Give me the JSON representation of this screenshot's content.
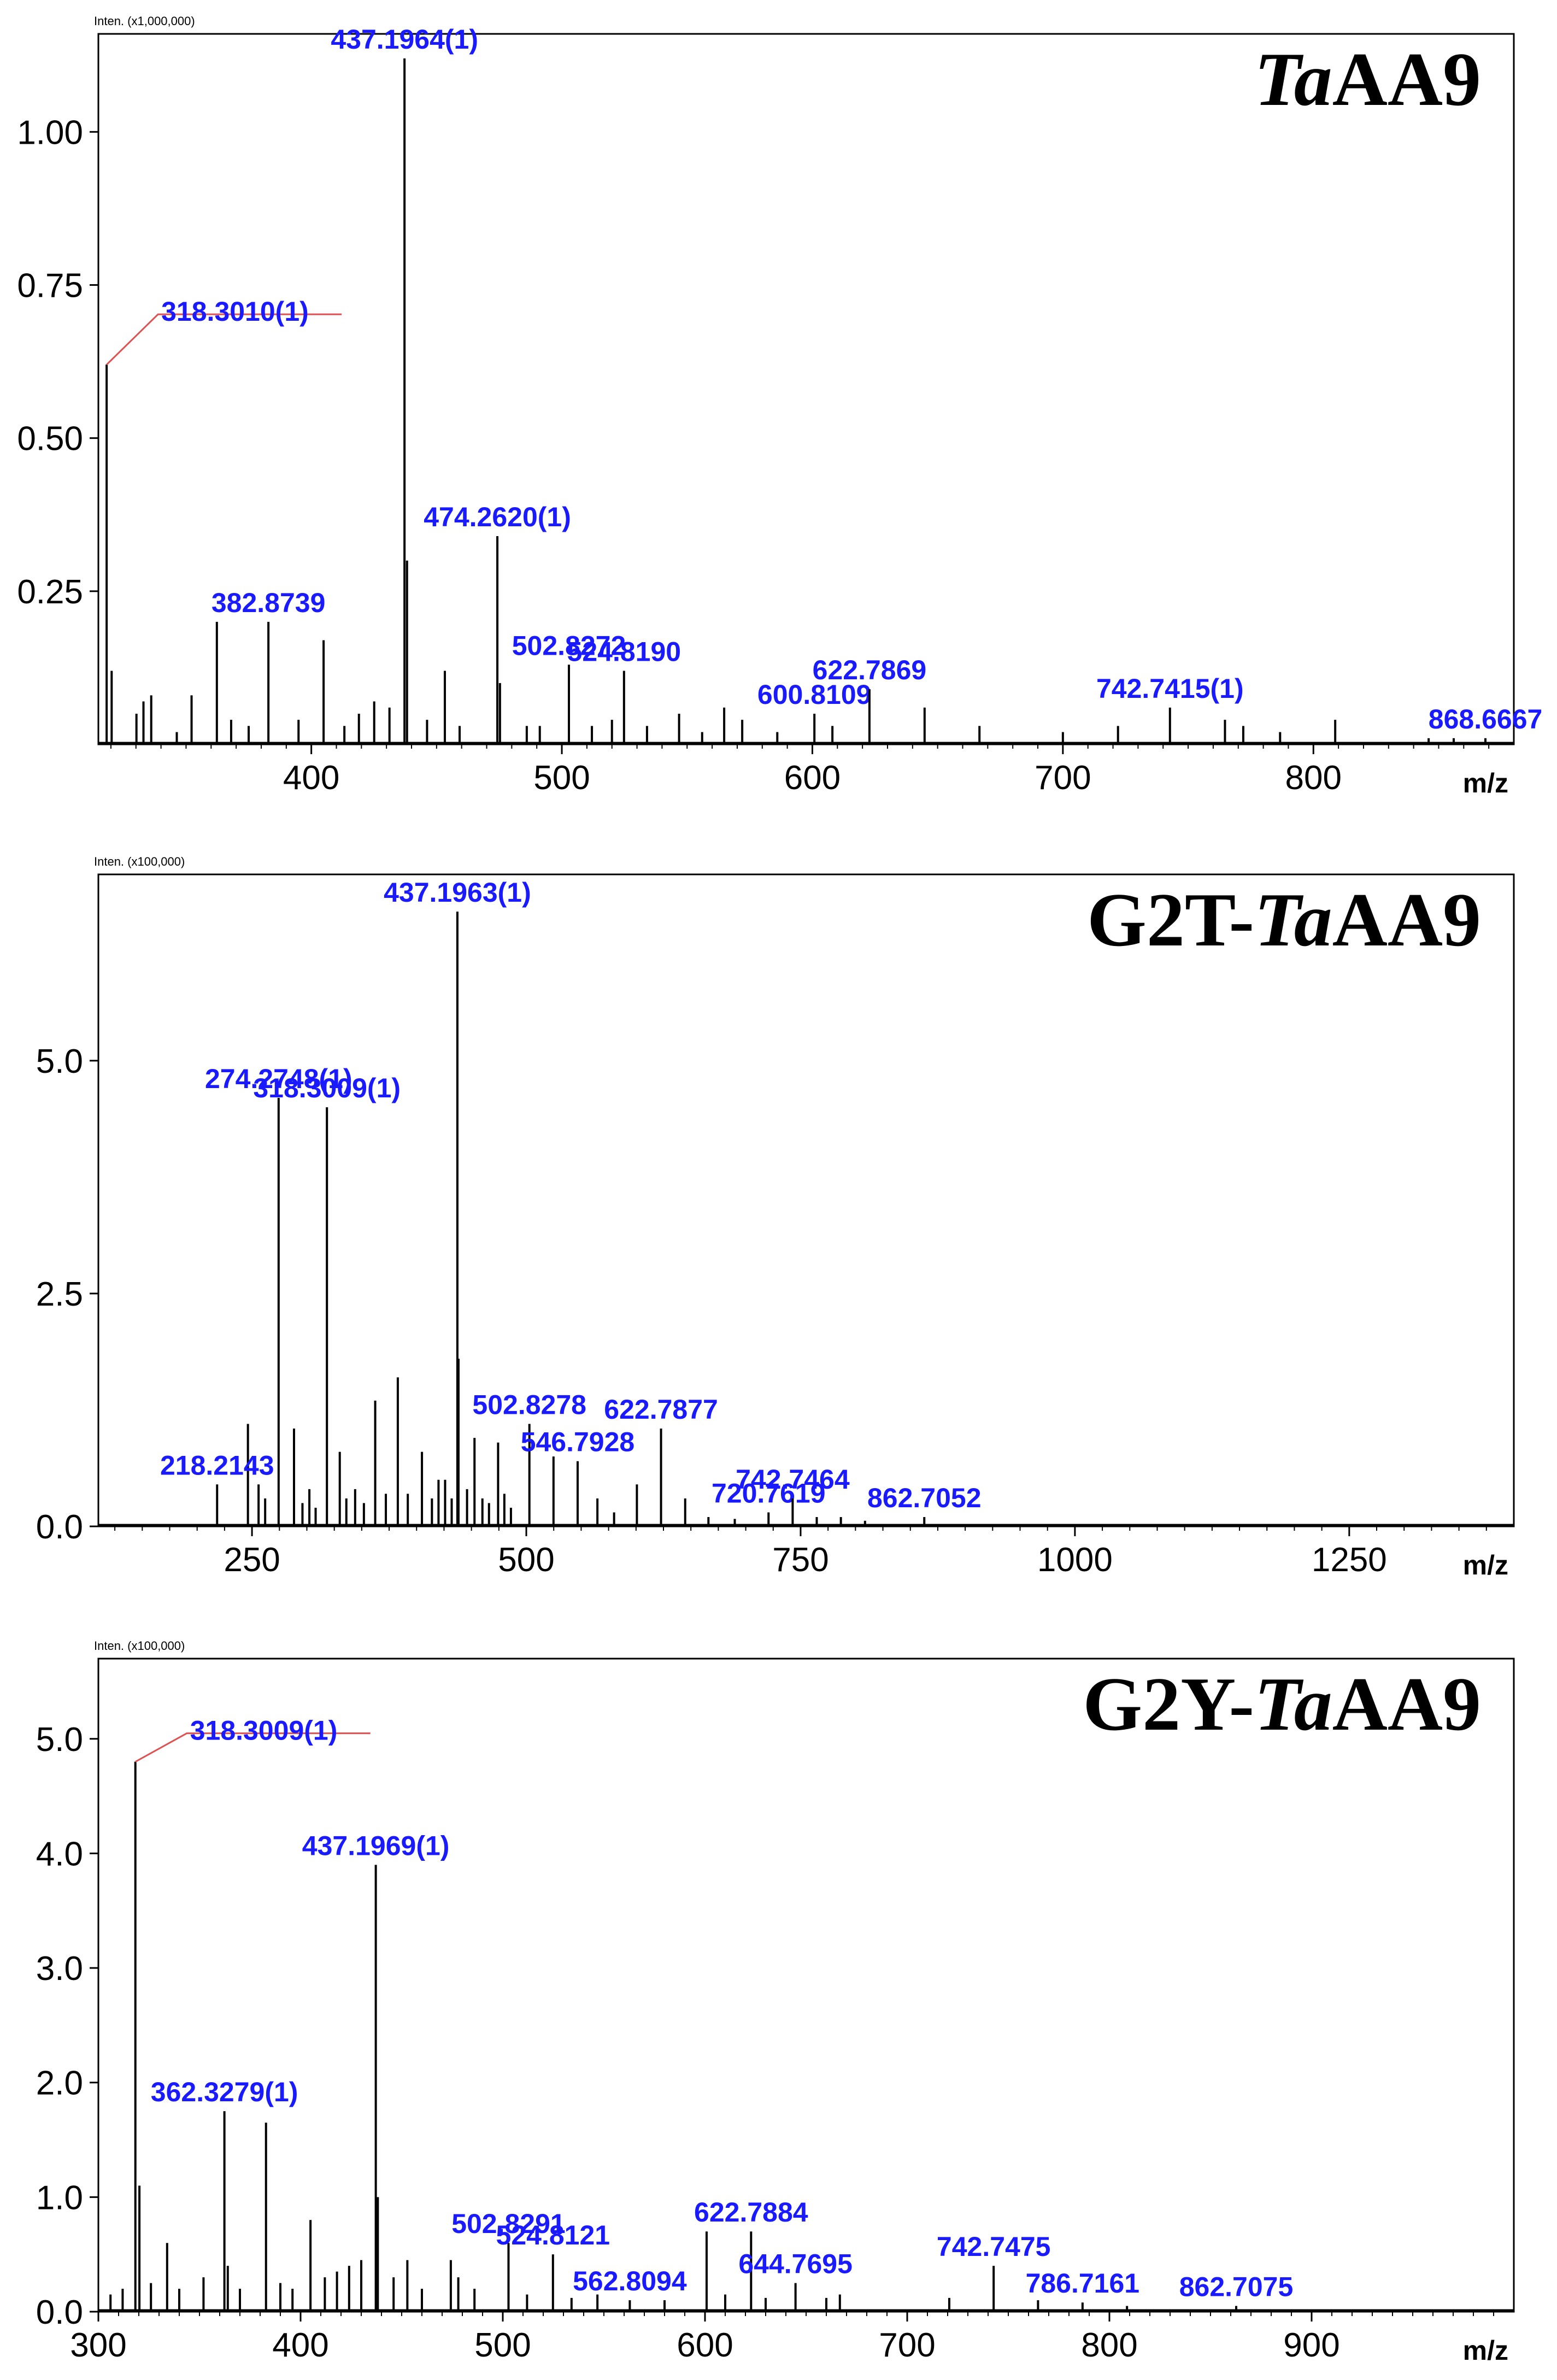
{
  "figure": {
    "colors": {
      "peak": "#000000",
      "label": "#1a1aff",
      "leader": "#e05050",
      "frame": "#000000",
      "grid": "#cfcfcf"
    }
  },
  "chart_data": [
    {
      "type": "line",
      "title_italic": "Ta",
      "title_plain": "AA9",
      "title_prefix": "",
      "intensity_unit": "Inten. (x1,000,000)",
      "xlabel": "m/z",
      "xlim": [
        315,
        880
      ],
      "ylim": [
        0,
        1.16
      ],
      "xticks": [
        400,
        500,
        600,
        700,
        800
      ],
      "xtick_labels": [
        "400",
        "500",
        "600",
        "700",
        "800"
      ],
      "yticks": [
        0.25,
        0.5,
        0.75,
        1.0
      ],
      "ytick_labels": [
        "0.25",
        "0.50",
        "0.75",
        "1.00"
      ],
      "labeled_peaks": [
        {
          "mz": 318.301,
          "intensity": 0.62,
          "label": "318.3010(1)",
          "leader": true
        },
        {
          "mz": 382.8739,
          "intensity": 0.2,
          "label": "382.8739"
        },
        {
          "mz": 437.1964,
          "intensity": 1.12,
          "label": "437.1964(1)"
        },
        {
          "mz": 474.262,
          "intensity": 0.34,
          "label": "474.2620(1)"
        },
        {
          "mz": 502.8272,
          "intensity": 0.13,
          "label": "502.8272"
        },
        {
          "mz": 524.819,
          "intensity": 0.12,
          "label": "524.8190"
        },
        {
          "mz": 600.8109,
          "intensity": 0.05,
          "label": "600.8109"
        },
        {
          "mz": 622.7869,
          "intensity": 0.09,
          "label": "622.7869"
        },
        {
          "mz": 742.7415,
          "intensity": 0.06,
          "label": "742.7415(1)"
        },
        {
          "mz": 868.6667,
          "intensity": 0.01,
          "label": "868.6667"
        }
      ],
      "minor_peaks": [
        {
          "mz": 320.3,
          "intensity": 0.12
        },
        {
          "mz": 330.2,
          "intensity": 0.05
        },
        {
          "mz": 333.0,
          "intensity": 0.07
        },
        {
          "mz": 336.1,
          "intensity": 0.08
        },
        {
          "mz": 346.3,
          "intensity": 0.02
        },
        {
          "mz": 352.2,
          "intensity": 0.08
        },
        {
          "mz": 362.3,
          "intensity": 0.2
        },
        {
          "mz": 368.0,
          "intensity": 0.04
        },
        {
          "mz": 375.0,
          "intensity": 0.03
        },
        {
          "mz": 394.9,
          "intensity": 0.04
        },
        {
          "mz": 404.9,
          "intensity": 0.17
        },
        {
          "mz": 413.2,
          "intensity": 0.03
        },
        {
          "mz": 419.0,
          "intensity": 0.05
        },
        {
          "mz": 425.1,
          "intensity": 0.07
        },
        {
          "mz": 431.2,
          "intensity": 0.06
        },
        {
          "mz": 438.2,
          "intensity": 0.3
        },
        {
          "mz": 446.2,
          "intensity": 0.04
        },
        {
          "mz": 453.3,
          "intensity": 0.12
        },
        {
          "mz": 459.2,
          "intensity": 0.03
        },
        {
          "mz": 475.3,
          "intensity": 0.1
        },
        {
          "mz": 486.0,
          "intensity": 0.03
        },
        {
          "mz": 491.2,
          "intensity": 0.03
        },
        {
          "mz": 512.0,
          "intensity": 0.03
        },
        {
          "mz": 520.0,
          "intensity": 0.04
        },
        {
          "mz": 534.0,
          "intensity": 0.03
        },
        {
          "mz": 546.8,
          "intensity": 0.05
        },
        {
          "mz": 556.0,
          "intensity": 0.02
        },
        {
          "mz": 564.8,
          "intensity": 0.06
        },
        {
          "mz": 572.0,
          "intensity": 0.04
        },
        {
          "mz": 586.0,
          "intensity": 0.02
        },
        {
          "mz": 608.0,
          "intensity": 0.03
        },
        {
          "mz": 644.8,
          "intensity": 0.06
        },
        {
          "mz": 666.7,
          "intensity": 0.03
        },
        {
          "mz": 700.0,
          "intensity": 0.02
        },
        {
          "mz": 722.0,
          "intensity": 0.03
        },
        {
          "mz": 764.7,
          "intensity": 0.04
        },
        {
          "mz": 772.0,
          "intensity": 0.03
        },
        {
          "mz": 786.7,
          "intensity": 0.02
        },
        {
          "mz": 808.7,
          "intensity": 0.04
        },
        {
          "mz": 846.0,
          "intensity": 0.01
        },
        {
          "mz": 856.0,
          "intensity": 0.01
        }
      ]
    },
    {
      "type": "line",
      "title_prefix": "G2T-",
      "title_italic": "Ta",
      "title_plain": "AA9",
      "intensity_unit": "Inten. (x100,000)",
      "xlabel": "m/z",
      "xlim": [
        110,
        1400
      ],
      "ylim": [
        0,
        7.0
      ],
      "xticks": [
        250,
        500,
        750,
        1000,
        1250
      ],
      "xtick_labels": [
        "250",
        "500",
        "750",
        "1000",
        "1250"
      ],
      "yticks": [
        0.0,
        2.5,
        5.0
      ],
      "ytick_labels": [
        "0.0",
        "2.5",
        "5.0"
      ],
      "labeled_peaks": [
        {
          "mz": 218.2143,
          "intensity": 0.45,
          "label": "218.2143"
        },
        {
          "mz": 274.2748,
          "intensity": 4.6,
          "label": "274.2748(1)"
        },
        {
          "mz": 318.3009,
          "intensity": 4.5,
          "label": "318.3009(1)"
        },
        {
          "mz": 437.1963,
          "intensity": 6.6,
          "label": "437.1963(1)"
        },
        {
          "mz": 502.8278,
          "intensity": 1.1,
          "label": "502.8278"
        },
        {
          "mz": 546.7928,
          "intensity": 0.7,
          "label": "546.7928"
        },
        {
          "mz": 622.7877,
          "intensity": 1.05,
          "label": "622.7877"
        },
        {
          "mz": 720.7619,
          "intensity": 0.15,
          "label": "720.7619"
        },
        {
          "mz": 742.7464,
          "intensity": 0.3,
          "label": "742.7464"
        },
        {
          "mz": 862.7052,
          "intensity": 0.1,
          "label": "862.7052"
        }
      ],
      "minor_peaks": [
        {
          "mz": 246.3,
          "intensity": 1.1
        },
        {
          "mz": 256.0,
          "intensity": 0.45
        },
        {
          "mz": 262.0,
          "intensity": 0.3
        },
        {
          "mz": 288.3,
          "intensity": 1.05
        },
        {
          "mz": 296.0,
          "intensity": 0.25
        },
        {
          "mz": 302.3,
          "intensity": 0.4
        },
        {
          "mz": 308.0,
          "intensity": 0.2
        },
        {
          "mz": 330.0,
          "intensity": 0.8
        },
        {
          "mz": 336.0,
          "intensity": 0.3
        },
        {
          "mz": 344.0,
          "intensity": 0.4
        },
        {
          "mz": 352.0,
          "intensity": 0.25
        },
        {
          "mz": 362.3,
          "intensity": 1.35
        },
        {
          "mz": 372.0,
          "intensity": 0.35
        },
        {
          "mz": 382.9,
          "intensity": 1.6
        },
        {
          "mz": 392.0,
          "intensity": 0.35
        },
        {
          "mz": 404.9,
          "intensity": 0.8
        },
        {
          "mz": 414.0,
          "intensity": 0.3
        },
        {
          "mz": 420.0,
          "intensity": 0.5
        },
        {
          "mz": 426.0,
          "intensity": 0.5
        },
        {
          "mz": 432.0,
          "intensity": 0.3
        },
        {
          "mz": 438.2,
          "intensity": 1.8
        },
        {
          "mz": 446.0,
          "intensity": 0.4
        },
        {
          "mz": 452.8,
          "intensity": 0.95
        },
        {
          "mz": 460.0,
          "intensity": 0.3
        },
        {
          "mz": 466.0,
          "intensity": 0.25
        },
        {
          "mz": 474.3,
          "intensity": 0.9
        },
        {
          "mz": 480.0,
          "intensity": 0.35
        },
        {
          "mz": 486.0,
          "intensity": 0.2
        },
        {
          "mz": 524.8,
          "intensity": 0.75
        },
        {
          "mz": 564.8,
          "intensity": 0.3
        },
        {
          "mz": 580.0,
          "intensity": 0.15
        },
        {
          "mz": 600.8,
          "intensity": 0.45
        },
        {
          "mz": 644.8,
          "intensity": 0.3
        },
        {
          "mz": 666.0,
          "intensity": 0.1
        },
        {
          "mz": 690.0,
          "intensity": 0.08
        },
        {
          "mz": 764.7,
          "intensity": 0.1
        },
        {
          "mz": 786.7,
          "intensity": 0.1
        },
        {
          "mz": 808.7,
          "intensity": 0.06
        }
      ]
    },
    {
      "type": "line",
      "title_prefix": "G2Y-",
      "title_italic": "Ta",
      "title_plain": "AA9",
      "intensity_unit": "Inten. (x100,000)",
      "xlabel": "m/z",
      "xlim": [
        300,
        1000
      ],
      "ylim": [
        0,
        5.7
      ],
      "xticks": [
        300,
        400,
        500,
        600,
        700,
        800,
        900
      ],
      "xtick_labels": [
        "300",
        "400",
        "500",
        "600",
        "700",
        "800",
        "900"
      ],
      "yticks": [
        0.0,
        1.0,
        2.0,
        3.0,
        4.0,
        5.0
      ],
      "ytick_labels": [
        "0.0",
        "1.0",
        "2.0",
        "3.0",
        "4.0",
        "5.0"
      ],
      "labeled_peaks": [
        {
          "mz": 318.3009,
          "intensity": 4.8,
          "label": "318.3009(1)",
          "leader": true
        },
        {
          "mz": 362.3279,
          "intensity": 1.75,
          "label": "362.3279(1)"
        },
        {
          "mz": 437.1969,
          "intensity": 3.9,
          "label": "437.1969(1)"
        },
        {
          "mz": 502.8291,
          "intensity": 0.6,
          "label": "502.8291"
        },
        {
          "mz": 524.8121,
          "intensity": 0.5,
          "label": "524.8121"
        },
        {
          "mz": 562.8094,
          "intensity": 0.1,
          "label": "562.8094"
        },
        {
          "mz": 622.7884,
          "intensity": 0.7,
          "label": "622.7884"
        },
        {
          "mz": 644.7695,
          "intensity": 0.25,
          "label": "644.7695"
        },
        {
          "mz": 742.7475,
          "intensity": 0.4,
          "label": "742.7475"
        },
        {
          "mz": 786.7161,
          "intensity": 0.08,
          "label": "786.7161"
        },
        {
          "mz": 862.7075,
          "intensity": 0.05,
          "label": "862.7075"
        }
      ],
      "minor_peaks": [
        {
          "mz": 306.0,
          "intensity": 0.15
        },
        {
          "mz": 312.0,
          "intensity": 0.2
        },
        {
          "mz": 320.3,
          "intensity": 1.1
        },
        {
          "mz": 326.0,
          "intensity": 0.25
        },
        {
          "mz": 334.0,
          "intensity": 0.6
        },
        {
          "mz": 340.0,
          "intensity": 0.2
        },
        {
          "mz": 352.0,
          "intensity": 0.3
        },
        {
          "mz": 364.0,
          "intensity": 0.4
        },
        {
          "mz": 370.0,
          "intensity": 0.2
        },
        {
          "mz": 382.9,
          "intensity": 1.65
        },
        {
          "mz": 390.0,
          "intensity": 0.25
        },
        {
          "mz": 396.0,
          "intensity": 0.2
        },
        {
          "mz": 404.9,
          "intensity": 0.8
        },
        {
          "mz": 412.0,
          "intensity": 0.3
        },
        {
          "mz": 418.0,
          "intensity": 0.35
        },
        {
          "mz": 424.0,
          "intensity": 0.4
        },
        {
          "mz": 430.0,
          "intensity": 0.45
        },
        {
          "mz": 438.2,
          "intensity": 1.0
        },
        {
          "mz": 446.0,
          "intensity": 0.3
        },
        {
          "mz": 452.8,
          "intensity": 0.45
        },
        {
          "mz": 460.0,
          "intensity": 0.2
        },
        {
          "mz": 474.3,
          "intensity": 0.45
        },
        {
          "mz": 478.0,
          "intensity": 0.3
        },
        {
          "mz": 486.0,
          "intensity": 0.2
        },
        {
          "mz": 512.0,
          "intensity": 0.15
        },
        {
          "mz": 534.0,
          "intensity": 0.12
        },
        {
          "mz": 546.8,
          "intensity": 0.15
        },
        {
          "mz": 580.0,
          "intensity": 0.1
        },
        {
          "mz": 600.8,
          "intensity": 0.7
        },
        {
          "mz": 610.0,
          "intensity": 0.15
        },
        {
          "mz": 630.0,
          "intensity": 0.12
        },
        {
          "mz": 660.0,
          "intensity": 0.12
        },
        {
          "mz": 666.7,
          "intensity": 0.15
        },
        {
          "mz": 720.8,
          "intensity": 0.12
        },
        {
          "mz": 764.7,
          "intensity": 0.1
        },
        {
          "mz": 808.7,
          "intensity": 0.05
        }
      ]
    }
  ]
}
